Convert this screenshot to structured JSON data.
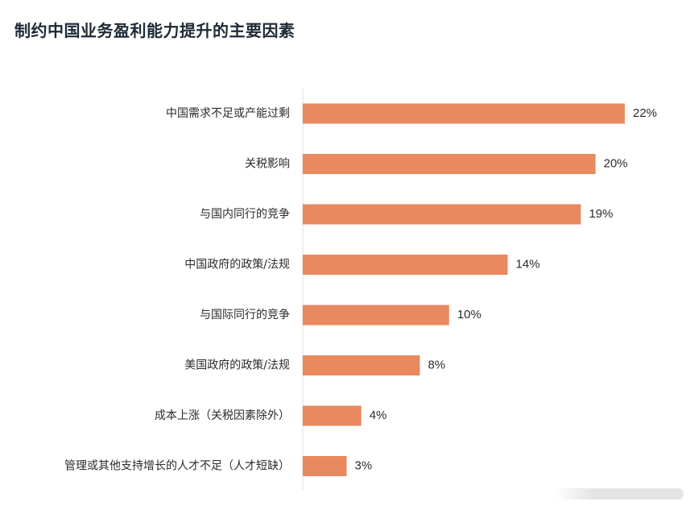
{
  "header": {
    "title": "制约中国业务盈利能力提升的主要因素"
  },
  "colors": {
    "bar": "#E8895F",
    "text": "#2b2b2b",
    "title": "#1f2a36",
    "axis": "#dcdcdc"
  },
  "chart_data": {
    "type": "bar",
    "orientation": "horizontal",
    "title": "制约中国业务盈利能力提升的主要因素",
    "xlabel": "",
    "ylabel": "",
    "value_suffix": "%",
    "grid": false,
    "xlim": [
      0,
      22
    ],
    "categories": [
      "中国需求不足或产能过剩",
      "关税影响",
      "与国内同行的竞争",
      "中国政府的政策/法规",
      "与国际同行的竞争",
      "美国政府的政策/法规",
      "成本上涨（关税因素除外）",
      "管理或其他支持增长的人才不足（人才短缺）"
    ],
    "values": [
      22,
      20,
      19,
      14,
      10,
      8,
      4,
      3
    ],
    "data_labels": [
      "22%",
      "20%",
      "19%",
      "14%",
      "10%",
      "8%",
      "4%",
      "3%"
    ]
  }
}
